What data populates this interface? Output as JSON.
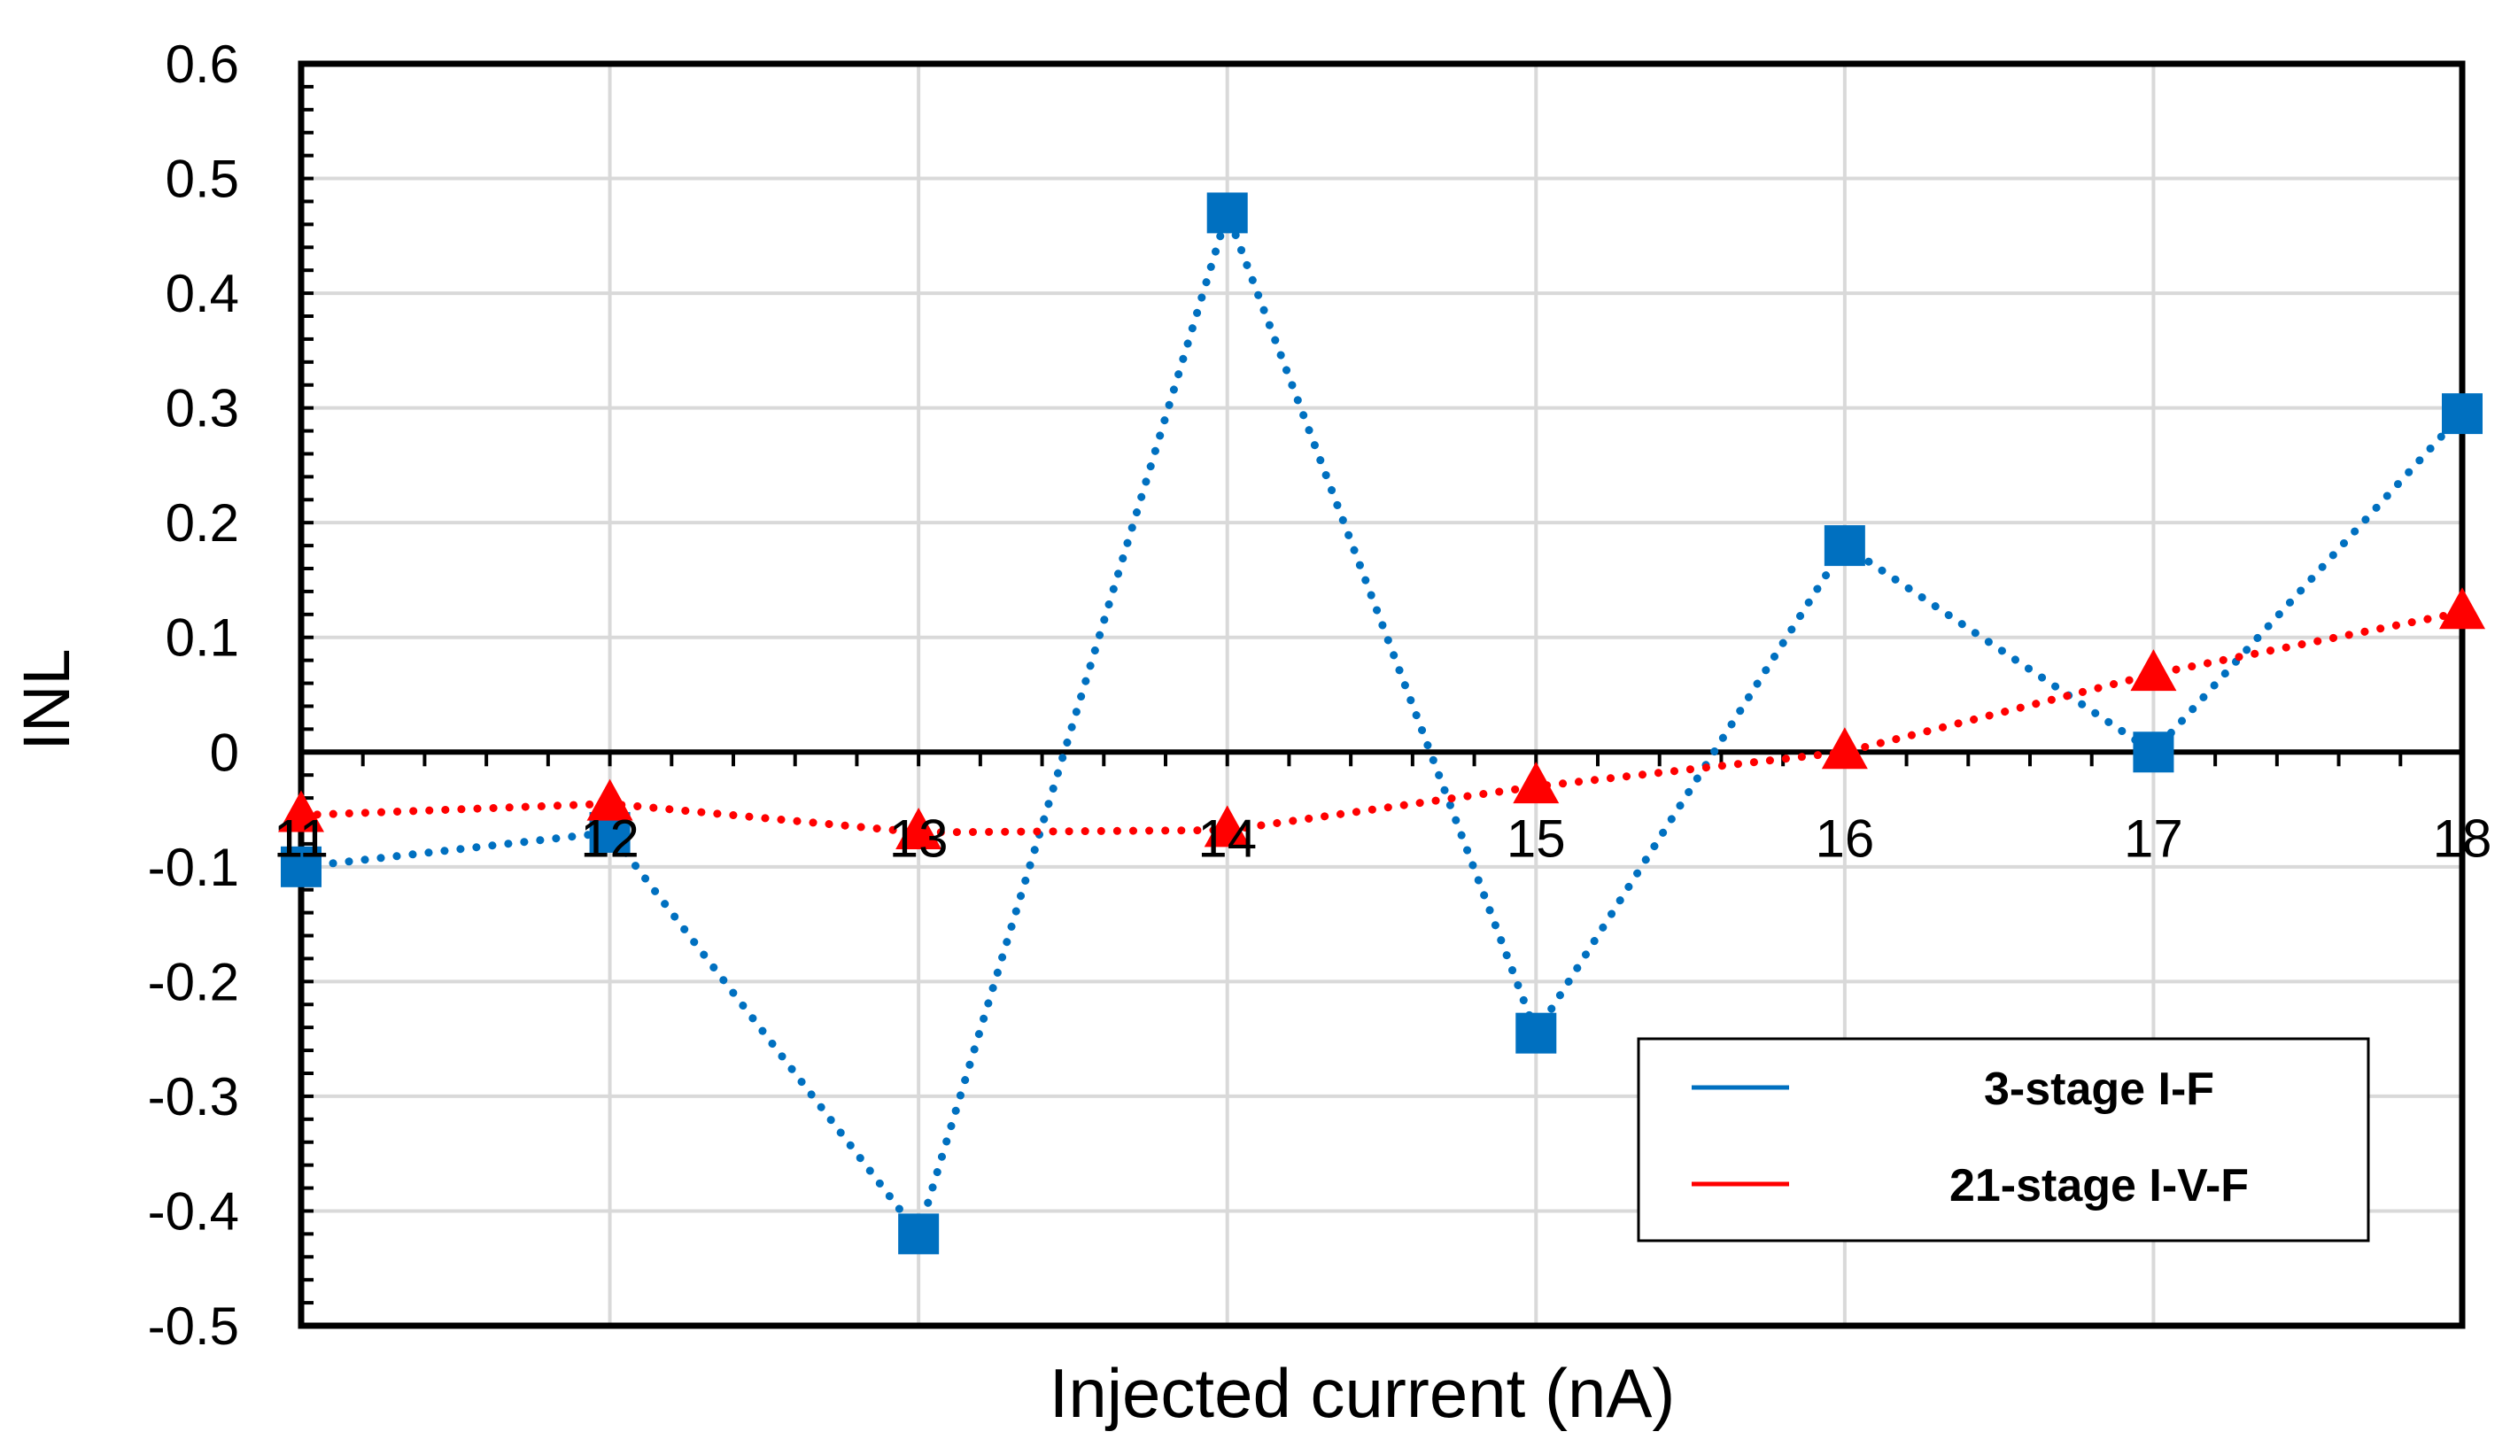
{
  "chart_data": {
    "type": "line",
    "title": "",
    "xlabel": "Injected current (nA)",
    "ylabel": "INL",
    "xlim": [
      11,
      18
    ],
    "ylim": [
      -0.5,
      0.6
    ],
    "x": [
      11,
      12,
      13,
      14,
      15,
      16,
      17,
      18
    ],
    "x_tick_labels": [
      "11",
      "12",
      "13",
      "14",
      "15",
      "16",
      "17",
      "18"
    ],
    "y_tick_labels": [
      "0.6",
      "0.5",
      "0.4",
      "0.3",
      "0.2",
      "0.1",
      "0",
      "-0.1",
      "-0.2",
      "-0.3",
      "-0.4",
      "-0.5"
    ],
    "grid": true,
    "legend_position": "bottom-right",
    "series": [
      {
        "name": "3-stage I-F",
        "color": "#0070C0",
        "marker": "square",
        "line_style": "dotted",
        "values": [
          -0.1,
          -0.07,
          -0.42,
          0.47,
          -0.245,
          0.18,
          0.0,
          0.295
        ]
      },
      {
        "name": "21-stage I-V-F",
        "color": "#FF0000",
        "marker": "triangle",
        "line_style": "dotted",
        "values": [
          -0.055,
          -0.045,
          -0.07,
          -0.068,
          -0.03,
          0.0,
          0.068,
          0.122
        ]
      }
    ]
  }
}
